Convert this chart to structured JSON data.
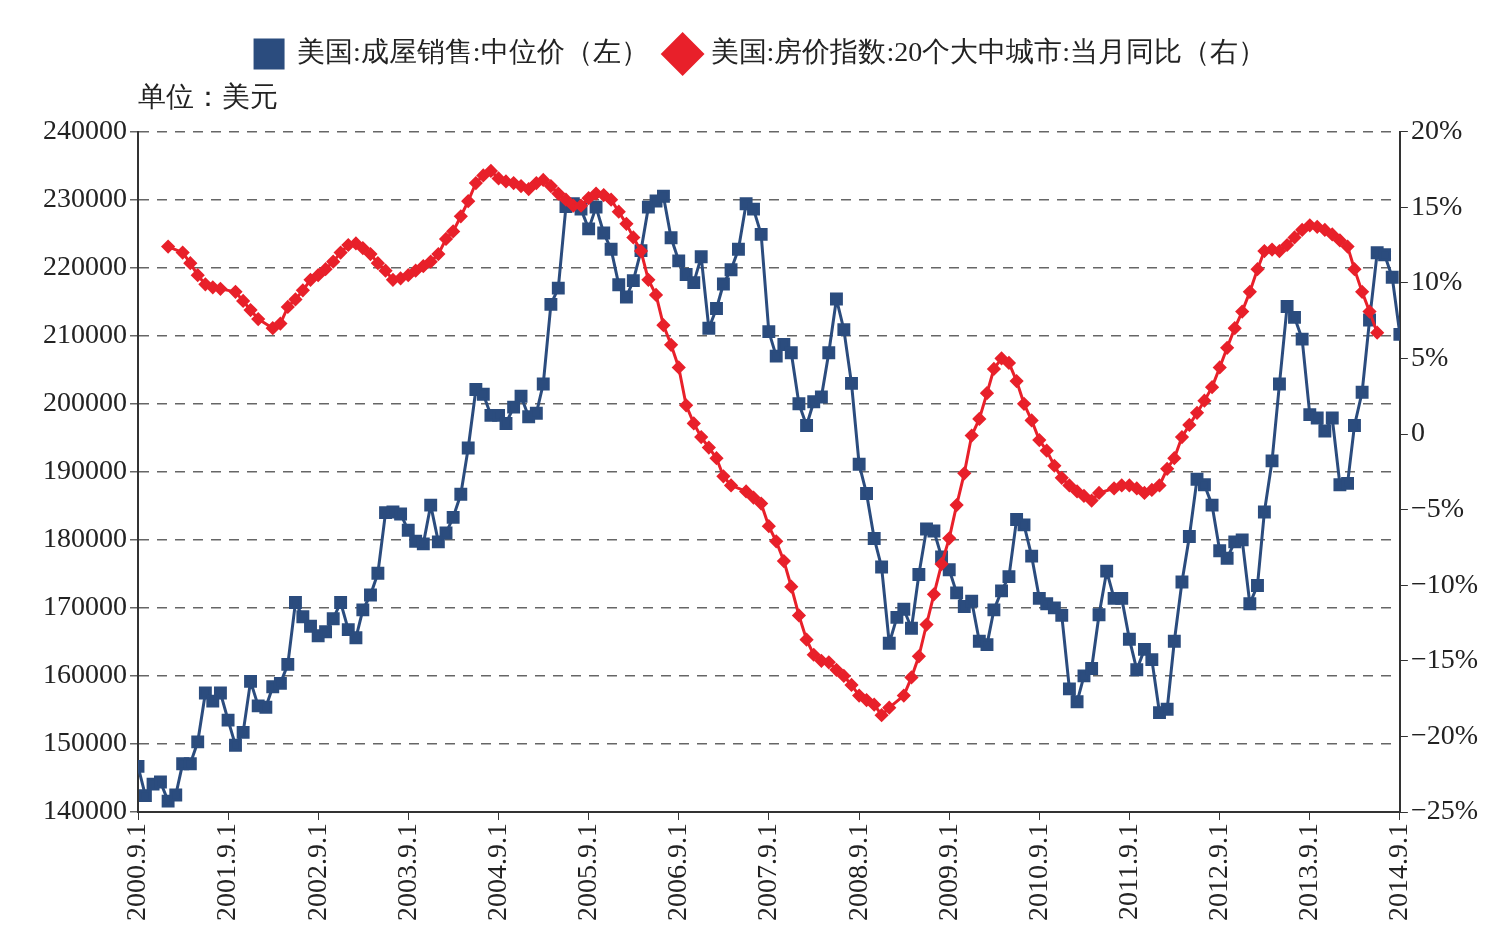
{
  "chart_data": {
    "type": "line",
    "legend": "top",
    "grid": "y",
    "annotations": [
      "单位：美元"
    ],
    "x": [
      "2000-09",
      "2000-10",
      "2000-11",
      "2000-12",
      "2001-01",
      "2001-02",
      "2001-03",
      "2001-04",
      "2001-05",
      "2001-06",
      "2001-07",
      "2001-08",
      "2001-09",
      "2001-10",
      "2001-11",
      "2001-12",
      "2002-01",
      "2002-02",
      "2002-03",
      "2002-04",
      "2002-05",
      "2002-06",
      "2002-07",
      "2002-08",
      "2002-09",
      "2002-10",
      "2002-11",
      "2002-12",
      "2003-01",
      "2003-02",
      "2003-03",
      "2003-04",
      "2003-05",
      "2003-06",
      "2003-07",
      "2003-08",
      "2003-09",
      "2003-10",
      "2003-11",
      "2003-12",
      "2004-01",
      "2004-02",
      "2004-03",
      "2004-04",
      "2004-05",
      "2004-06",
      "2004-07",
      "2004-08",
      "2004-09",
      "2004-10",
      "2004-11",
      "2004-12",
      "2005-01",
      "2005-02",
      "2005-03",
      "2005-04",
      "2005-05",
      "2005-06",
      "2005-07",
      "2005-08",
      "2005-09",
      "2005-10",
      "2005-11",
      "2005-12",
      "2006-01",
      "2006-02",
      "2006-03",
      "2006-04",
      "2006-05",
      "2006-06",
      "2006-07",
      "2006-08",
      "2006-09",
      "2006-10",
      "2006-11",
      "2006-12",
      "2007-01",
      "2007-02",
      "2007-03",
      "2007-04",
      "2007-05",
      "2007-06",
      "2007-07",
      "2007-08",
      "2007-09",
      "2007-10",
      "2007-11",
      "2007-12",
      "2008-01",
      "2008-02",
      "2008-03",
      "2008-04",
      "2008-05",
      "2008-06",
      "2008-07",
      "2008-08",
      "2008-09",
      "2008-10",
      "2008-11",
      "2008-12",
      "2009-01",
      "2009-02",
      "2009-03",
      "2009-04",
      "2009-05",
      "2009-06",
      "2009-07",
      "2009-08",
      "2009-09",
      "2009-10",
      "2009-11",
      "2009-12",
      "2010-01",
      "2010-02",
      "2010-03",
      "2010-04",
      "2010-05",
      "2010-06",
      "2010-07",
      "2010-08",
      "2010-09",
      "2010-10",
      "2010-11",
      "2010-12",
      "2011-01",
      "2011-02",
      "2011-03",
      "2011-04",
      "2011-05",
      "2011-06",
      "2011-07",
      "2011-08",
      "2011-09",
      "2011-10",
      "2011-11",
      "2011-12",
      "2012-01",
      "2012-02",
      "2012-03",
      "2012-04",
      "2012-05",
      "2012-06",
      "2012-07",
      "2012-08",
      "2012-09",
      "2012-10",
      "2012-11",
      "2012-12",
      "2013-01",
      "2013-02",
      "2013-03",
      "2013-04",
      "2013-05",
      "2013-06",
      "2013-07",
      "2013-08",
      "2013-09",
      "2013-10",
      "2013-11",
      "2013-12",
      "2014-01",
      "2014-02",
      "2014-03",
      "2014-04",
      "2014-05",
      "2014-06",
      "2014-07",
      "2014-08",
      "2014-09"
    ],
    "series": [
      {
        "name": "美国:成屋销售:中位价（左）",
        "color": "#2b4c7e",
        "marker": "square",
        "values": [
          146700,
          142400,
          144100,
          144400,
          141600,
          142500,
          147100,
          147100,
          150300,
          157500,
          156300,
          157500,
          153500,
          149800,
          151700,
          159200,
          155600,
          155400,
          158400,
          158900,
          161700,
          170800,
          168700,
          167300,
          165900,
          166500,
          168400,
          170800,
          166800,
          165600,
          169700,
          171900,
          175100,
          184000,
          184100,
          183800,
          181400,
          179800,
          179400,
          185100,
          179700,
          181000,
          183300,
          186700,
          193500,
          202100,
          201400,
          198300,
          198300,
          197100,
          199500,
          201100,
          198100,
          198600,
          202900,
          214600,
          217000,
          229000,
          229400,
          228600,
          225700,
          228900,
          225100,
          222700,
          217500,
          215700,
          218100,
          222500,
          228900,
          229800,
          230500,
          224400,
          221000,
          219000,
          217800,
          221600,
          211100,
          214000,
          217600,
          219700,
          222700,
          229400,
          228600,
          224900,
          210600,
          207000,
          208700,
          207500,
          200000,
          196800,
          200300,
          201000,
          207500,
          215400,
          210900,
          203000,
          191100,
          186800,
          180200,
          176000,
          164800,
          168600,
          169800,
          167000,
          174900,
          181600,
          181300,
          177500,
          175600,
          172200,
          170200,
          171000,
          165100,
          164600,
          169700,
          172500,
          174600,
          183000,
          182200,
          177600,
          171400,
          170600,
          170000,
          168900,
          158100,
          156200,
          160000,
          161100,
          169000,
          175400,
          171400,
          171400,
          165400,
          160900,
          163900,
          162400,
          154600,
          155100,
          165100,
          173800,
          180500,
          188900,
          188100,
          185100,
          178400,
          177300,
          179700,
          180000,
          170600,
          173300,
          184100,
          191600,
          202900,
          214300,
          212700,
          209500,
          198400,
          197900,
          196000,
          197900,
          188100,
          188300,
          196800,
          201700,
          212300,
          222200,
          221900,
          218600,
          210200
        ]
      },
      {
        "name": "美国:房价指数:20个大中城市:当月同比（右）",
        "color": "#e8202a",
        "marker": "diamond",
        "axis": "y2",
        "x": [
          "2001-01",
          "2001-03",
          "2001-04",
          "2001-05",
          "2001-06",
          "2001-07",
          "2001-08",
          "2001-10",
          "2001-11",
          "2001-12",
          "2002-01",
          "2002-03",
          "2002-04",
          "2002-05",
          "2002-06",
          "2002-07",
          "2002-08",
          "2002-09",
          "2002-10",
          "2002-11",
          "2002-12",
          "2003-01",
          "2003-02",
          "2003-03",
          "2003-04",
          "2003-05",
          "2003-06",
          "2003-07",
          "2003-08",
          "2003-09",
          "2003-10",
          "2003-11",
          "2003-12",
          "2004-01",
          "2004-02",
          "2004-03",
          "2004-04",
          "2004-05",
          "2004-06",
          "2004-07",
          "2004-08",
          "2004-09",
          "2004-10",
          "2004-11",
          "2004-12",
          "2005-01",
          "2005-02",
          "2005-03",
          "2005-04",
          "2005-05",
          "2005-06",
          "2005-07",
          "2005-08",
          "2005-09",
          "2005-10",
          "2005-11",
          "2005-12",
          "2006-01",
          "2006-02",
          "2006-03",
          "2006-04",
          "2006-05",
          "2006-06",
          "2006-07",
          "2006-08",
          "2006-09",
          "2006-10",
          "2006-11",
          "2006-12",
          "2007-01",
          "2007-02",
          "2007-03",
          "2007-04",
          "2007-06",
          "2007-07",
          "2007-08",
          "2007-09",
          "2007-10",
          "2007-11",
          "2007-12",
          "2008-01",
          "2008-02",
          "2008-03",
          "2008-04",
          "2008-05",
          "2008-06",
          "2008-07",
          "2008-08",
          "2008-09",
          "2008-10",
          "2008-11",
          "2008-12",
          "2009-01",
          "2009-03",
          "2009-04",
          "2009-05",
          "2009-06",
          "2009-07",
          "2009-08",
          "2009-09",
          "2009-10",
          "2009-11",
          "2009-12",
          "2010-01",
          "2010-02",
          "2010-03",
          "2010-04",
          "2010-05",
          "2010-06",
          "2010-07",
          "2010-08",
          "2010-09",
          "2010-10",
          "2010-11",
          "2010-12",
          "2011-01",
          "2011-02",
          "2011-03",
          "2011-04",
          "2011-05",
          "2011-07",
          "2011-08",
          "2011-09",
          "2011-10",
          "2011-11",
          "2011-12",
          "2012-01",
          "2012-02",
          "2012-03",
          "2012-04",
          "2012-05",
          "2012-06",
          "2012-07",
          "2012-08",
          "2012-09",
          "2012-10",
          "2012-11",
          "2012-12",
          "2013-01",
          "2013-02",
          "2013-03",
          "2013-04",
          "2013-05",
          "2013-06",
          "2013-07",
          "2013-08",
          "2013-09",
          "2013-10",
          "2013-11",
          "2013-12",
          "2014-01",
          "2014-02",
          "2014-03",
          "2014-04",
          "2014-05",
          "2014-06"
        ],
        "values": [
          12.4,
          12.0,
          11.3,
          10.5,
          9.9,
          9.7,
          9.6,
          9.4,
          8.8,
          8.2,
          7.6,
          7.0,
          7.3,
          8.4,
          8.9,
          9.5,
          10.2,
          10.5,
          10.9,
          11.4,
          12.0,
          12.5,
          12.6,
          12.3,
          11.9,
          11.3,
          10.8,
          10.2,
          10.3,
          10.5,
          10.8,
          11.1,
          11.4,
          11.9,
          12.9,
          13.4,
          14.4,
          15.4,
          16.6,
          17.1,
          17.4,
          16.9,
          16.7,
          16.6,
          16.4,
          16.2,
          16.6,
          16.8,
          16.4,
          15.9,
          15.5,
          15.1,
          15.1,
          15.6,
          15.9,
          15.8,
          15.5,
          14.7,
          13.9,
          13.0,
          12.1,
          10.2,
          9.2,
          7.2,
          5.9,
          4.4,
          1.9,
          0.7,
          -0.2,
          -0.9,
          -1.6,
          -2.8,
          -3.4,
          -3.8,
          -4.2,
          -4.6,
          -6.1,
          -7.1,
          -8.4,
          -10.1,
          -12.0,
          -13.6,
          -14.6,
          -15.0,
          -15.1,
          -15.6,
          -16.0,
          -16.6,
          -17.3,
          -17.6,
          -17.9,
          -18.6,
          -18.1,
          -17.3,
          -16.1,
          -14.7,
          -12.6,
          -10.6,
          -8.6,
          -6.9,
          -4.7,
          -2.6,
          -0.1,
          1.0,
          2.7,
          4.3,
          5.0,
          4.7,
          3.5,
          2.0,
          0.9,
          -0.4,
          -1.1,
          -2.1,
          -2.9,
          -3.4,
          -3.8,
          -4.1,
          -4.4,
          -3.9,
          -3.6,
          -3.4,
          -3.4,
          -3.6,
          -3.9,
          -3.7,
          -3.4,
          -2.3,
          -1.6,
          -0.2,
          0.6,
          1.4,
          2.2,
          3.1,
          4.4,
          5.7,
          7.0,
          8.1,
          9.4,
          10.9,
          12.1,
          12.2,
          12.1,
          12.5,
          13.0,
          13.5,
          13.8,
          13.7,
          13.5,
          13.2,
          12.8,
          12.4,
          10.9,
          9.4,
          8.1,
          6.7
        ]
      }
    ],
    "xlim": [
      "2000-09",
      "2014-09"
    ],
    "xticks": [
      {
        "value": "2000-09-01",
        "label": "2000.9.1"
      },
      {
        "value": "2001-09-01",
        "label": "2001.9.1"
      },
      {
        "value": "2002-09-01",
        "label": "2002.9.1"
      },
      {
        "value": "2003-09-01",
        "label": "2003.9.1"
      },
      {
        "value": "2004-09-01",
        "label": "2004.9.1"
      },
      {
        "value": "2005-09-01",
        "label": "2005.9.1"
      },
      {
        "value": "2006-09-01",
        "label": "2006.9.1"
      },
      {
        "value": "2007-09-01",
        "label": "2007.9.1"
      },
      {
        "value": "2008-09-01",
        "label": "2008.9.1"
      },
      {
        "value": "2009-09-01",
        "label": "2009.9.1"
      },
      {
        "value": "2010-09-01",
        "label": "2010.9.1"
      },
      {
        "value": "2011-09-01",
        "label": "2011.9.1"
      },
      {
        "value": "2012-09-01",
        "label": "2012.9.1"
      },
      {
        "value": "2013-09-01",
        "label": "2013.9.1"
      },
      {
        "value": "2014-09-01",
        "label": "2014.9.1"
      }
    ],
    "ylim": [
      140000,
      240000
    ],
    "yticks": [
      140000,
      150000,
      160000,
      170000,
      180000,
      190000,
      200000,
      210000,
      220000,
      230000,
      240000
    ],
    "y2lim": [
      -25,
      20
    ],
    "y2ticks": [
      {
        "value": -25,
        "label": "−25%"
      },
      {
        "value": -20,
        "label": "−20%"
      },
      {
        "value": -15,
        "label": "−15%"
      },
      {
        "value": -10,
        "label": "−10%"
      },
      {
        "value": -5,
        "label": "−5%"
      },
      0,
      {
        "value": 5,
        "label": "5%"
      },
      {
        "value": 10,
        "label": "10%"
      },
      {
        "value": 15,
        "label": "15%"
      },
      {
        "value": 20,
        "label": "20%"
      }
    ]
  }
}
